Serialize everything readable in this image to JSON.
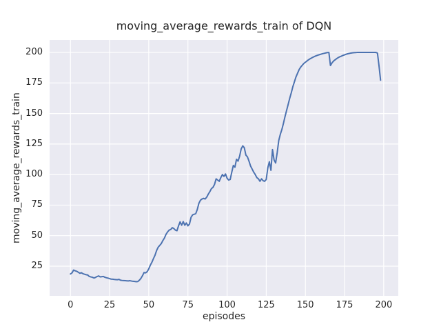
{
  "figure": {
    "title": "moving_average_rewards_train of DQN"
  },
  "chart_data": {
    "type": "line",
    "title": "moving_average_rewards_train of DQN",
    "xlabel": "episodes",
    "ylabel": "moving_average_rewards_train",
    "x_ticks": [
      0,
      25,
      50,
      75,
      100,
      125,
      150,
      175,
      200
    ],
    "y_ticks": [
      25,
      50,
      75,
      100,
      125,
      150,
      175,
      200
    ],
    "xlim": [
      -13.3,
      209.3
    ],
    "ylim": [
      0.7,
      210.2
    ],
    "grid": true,
    "legend_position": "none",
    "style": {
      "figure_background": "#FFFFFF",
      "axes_background": "#EAEAF2",
      "grid_color": "#FFFFFF",
      "line_color": "#4C72B0",
      "text_color": "#262626",
      "line_width": 2
    },
    "series": [
      {
        "name": "moving_average_rewards_train",
        "x_start": 0,
        "x_step": 1,
        "values": [
          18.6,
          19.5,
          21.8,
          21.2,
          20.8,
          20,
          19.2,
          19.6,
          18.8,
          18.4,
          18,
          17.8,
          16.6,
          16.2,
          15.9,
          15.3,
          15.8,
          16.5,
          17,
          16.2,
          16.4,
          16.6,
          15.9,
          15.5,
          15.2,
          14.8,
          14.4,
          14.3,
          14.1,
          14,
          13.9,
          14.2,
          13.5,
          13.3,
          13.2,
          13.1,
          13,
          12.9,
          13.1,
          12.8,
          12.6,
          12.5,
          12.3,
          12.4,
          13.5,
          15,
          17.2,
          19.8,
          19.5,
          20.5,
          22.8,
          25.8,
          28.2,
          31.2,
          34,
          37.8,
          40.5,
          42,
          43.5,
          46,
          48,
          51,
          53,
          54.5,
          55,
          56.5,
          55.8,
          54.5,
          54,
          58,
          61.3,
          58.5,
          61.5,
          58.5,
          60.4,
          58,
          59.5,
          65,
          67,
          67.5,
          68,
          71.5,
          76.5,
          79,
          80,
          80.5,
          80,
          81.5,
          84,
          86,
          88.5,
          89.5,
          92,
          96.5,
          95.5,
          94.5,
          97.5,
          100,
          98.5,
          100.5,
          97,
          95.5,
          96,
          102,
          107.5,
          106,
          112.5,
          111,
          115,
          121,
          123.5,
          122,
          116,
          114.5,
          111,
          107,
          104.5,
          102,
          100,
          97.5,
          96.5,
          94.5,
          96.5,
          95,
          94.5,
          96,
          105.5,
          110.5,
          103.5,
          120.5,
          112,
          109.5,
          118,
          128,
          133,
          137,
          142,
          147.5,
          152.5,
          157.5,
          162.5,
          167,
          172,
          176,
          180,
          183,
          186,
          188,
          189.5,
          191,
          192,
          193,
          194,
          194.8,
          195.5,
          196.2,
          196.8,
          197.3,
          197.8,
          198.2,
          198.6,
          199,
          199.3,
          199.6,
          199.9,
          200,
          189.3,
          191.5,
          193,
          194,
          195,
          195.8,
          196.5,
          197,
          197.6,
          198,
          198.5,
          198.9,
          199.2,
          199.5,
          199.7,
          199.8,
          199.9,
          200,
          200,
          200,
          200,
          200,
          200,
          200,
          200,
          200,
          200,
          200,
          200,
          200,
          199.5,
          189,
          177.3
        ]
      }
    ]
  }
}
